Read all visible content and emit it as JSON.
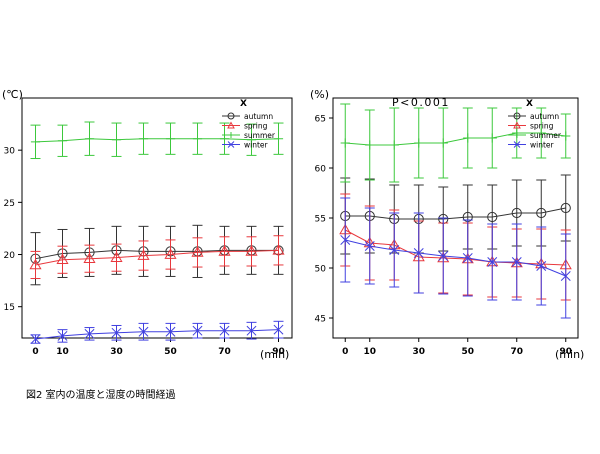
{
  "caption": "図2 室内の温度と湿度の時間経過",
  "colors": {
    "autumn": "#333333",
    "spring": "#e8383d",
    "summer": "#3cc83c",
    "winter": "#4040e0"
  },
  "chart_data": [
    {
      "type": "line",
      "ylabel": "(℃)",
      "xlabel": "(min)",
      "legend_title": "X",
      "legend_position": "top-right",
      "grid": false,
      "xlim": [
        -5,
        95
      ],
      "ylim": [
        12,
        35
      ],
      "x": [
        0,
        10,
        20,
        30,
        40,
        50,
        60,
        70,
        80,
        90
      ],
      "xticks": [
        0,
        10,
        30,
        50,
        70,
        90
      ],
      "yticks": [
        15,
        20,
        25,
        30
      ],
      "series": [
        {
          "name": "autumn",
          "marker": "circle",
          "values": [
            19.6,
            20.1,
            20.2,
            20.4,
            20.3,
            20.3,
            20.3,
            20.4,
            20.4,
            20.4
          ],
          "errors": [
            2.5,
            2.3,
            2.3,
            2.3,
            2.4,
            2.4,
            2.5,
            2.3,
            2.3,
            2.3
          ]
        },
        {
          "name": "spring",
          "marker": "triangle",
          "values": [
            19.0,
            19.5,
            19.6,
            19.7,
            19.9,
            20.0,
            20.2,
            20.3,
            20.3,
            20.4
          ],
          "errors": [
            1.3,
            1.3,
            1.3,
            1.3,
            1.4,
            1.4,
            1.4,
            1.4,
            1.4,
            1.4
          ]
        },
        {
          "name": "summer",
          "marker": "plus",
          "values": [
            30.8,
            30.9,
            31.1,
            31.0,
            31.1,
            31.1,
            31.1,
            31.1,
            31.0,
            31.1
          ],
          "errors": [
            1.6,
            1.5,
            1.6,
            1.6,
            1.5,
            1.5,
            1.5,
            1.5,
            1.5,
            1.5
          ]
        },
        {
          "name": "winter",
          "marker": "x",
          "values": [
            11.9,
            12.2,
            12.4,
            12.5,
            12.6,
            12.6,
            12.7,
            12.7,
            12.7,
            12.8
          ],
          "errors": [
            0.4,
            0.6,
            0.6,
            0.7,
            0.8,
            0.8,
            0.7,
            0.7,
            0.8,
            0.8
          ]
        }
      ]
    },
    {
      "type": "line",
      "ylabel": "(%)",
      "xlabel": "(min)",
      "annotation": "P<0.001",
      "legend_title": "X",
      "legend_position": "top-right",
      "grid": false,
      "xlim": [
        -5,
        95
      ],
      "ylim": [
        43,
        67
      ],
      "x": [
        0,
        10,
        20,
        30,
        40,
        50,
        60,
        70,
        80,
        90
      ],
      "xticks": [
        0,
        10,
        30,
        50,
        70,
        90
      ],
      "yticks": [
        45,
        50,
        55,
        60,
        65
      ],
      "series": [
        {
          "name": "autumn",
          "marker": "circle",
          "values": [
            55.2,
            55.2,
            54.9,
            54.9,
            54.9,
            55.1,
            55.1,
            55.5,
            55.5,
            56.0
          ],
          "errors": [
            3.8,
            3.7,
            3.4,
            3.4,
            3.2,
            3.2,
            3.2,
            3.3,
            3.3,
            3.3
          ]
        },
        {
          "name": "spring",
          "marker": "triangle",
          "values": [
            53.8,
            52.5,
            52.3,
            51.1,
            51.0,
            50.9,
            50.6,
            50.5,
            50.4,
            50.3
          ],
          "errors": [
            3.6,
            3.7,
            3.5,
            3.6,
            3.5,
            3.6,
            3.5,
            3.4,
            3.5,
            3.5
          ]
        },
        {
          "name": "summer",
          "marker": "plus",
          "values": [
            62.5,
            62.3,
            62.3,
            62.5,
            62.5,
            63.0,
            63.0,
            63.5,
            63.5,
            63.2
          ],
          "errors": [
            3.9,
            3.5,
            3.7,
            3.5,
            3.5,
            3.0,
            3.0,
            2.5,
            2.5,
            2.2
          ]
        },
        {
          "name": "winter",
          "marker": "x",
          "values": [
            52.8,
            52.2,
            51.8,
            51.5,
            51.2,
            51.0,
            50.6,
            50.6,
            50.2,
            49.2
          ],
          "errors": [
            4.2,
            3.8,
            3.7,
            4.0,
            3.8,
            3.8,
            3.8,
            3.8,
            3.9,
            4.2
          ]
        }
      ]
    }
  ]
}
